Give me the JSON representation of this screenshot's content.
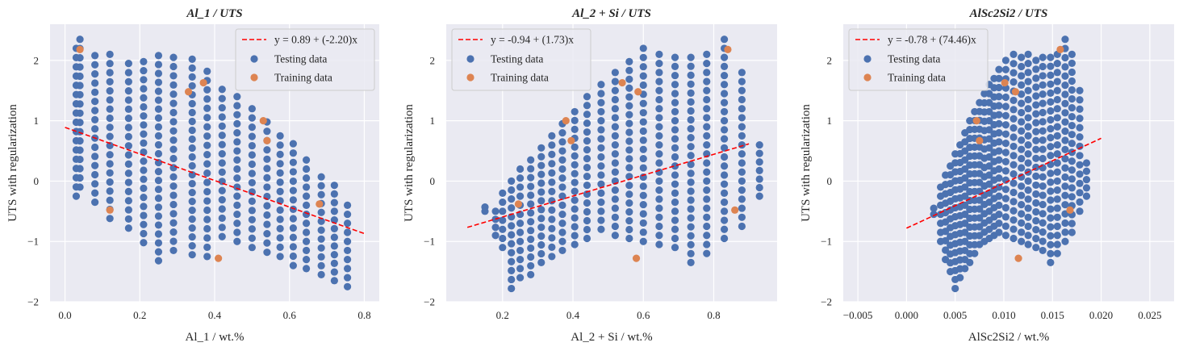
{
  "colors": {
    "background": "#eaeaf2",
    "grid": "#ffffff",
    "testing": "#4c72b0",
    "training": "#dd8452",
    "fit": "#ff0000"
  },
  "chart_data": [
    {
      "type": "scatter",
      "title": "Al_1 / UTS",
      "xlabel": "Al_1 / wt.%",
      "ylabel": "UTS with regularization",
      "xlim": [
        -0.04,
        0.84
      ],
      "ylim": [
        -2.0,
        2.6
      ],
      "xticks": [
        0.0,
        0.2,
        0.4,
        0.6,
        0.8
      ],
      "xtick_labels": [
        "0.0",
        "0.2",
        "0.4",
        "0.6",
        "0.8"
      ],
      "yticks": [
        -2,
        -1,
        0,
        1,
        2
      ],
      "ytick_labels": [
        "−2",
        "−1",
        "0",
        "1",
        "2"
      ],
      "fit": {
        "label": "y = 0.89 + (-2.20)x",
        "intercept": 0.89,
        "slope": -2.2,
        "x_range": [
          0.0,
          0.8
        ]
      },
      "legend": {
        "position": "top-right",
        "entries": [
          "y = 0.89 + (-2.20)x",
          "Testing data",
          "Training data"
        ]
      },
      "training": {
        "name": "Training data",
        "x": [
          0.04,
          0.12,
          0.33,
          0.37,
          0.41,
          0.53,
          0.54,
          0.68
        ],
        "y": [
          2.18,
          -0.48,
          1.48,
          1.63,
          -1.28,
          1.0,
          0.67,
          -0.38
        ]
      },
      "testing": {
        "name": "Testing data",
        "columns": [
          {
            "x": 0.03,
            "y": [
              2.2,
              -0.25
            ]
          },
          {
            "x": 0.04,
            "y": [
              2.35,
              -0.1
            ]
          },
          {
            "x": 0.08,
            "y": [
              2.08,
              -0.35
            ]
          },
          {
            "x": 0.12,
            "y": [
              2.1,
              -0.62
            ]
          },
          {
            "x": 0.17,
            "y": [
              1.95,
              -0.78
            ]
          },
          {
            "x": 0.21,
            "y": [
              1.98,
              -1.02
            ]
          },
          {
            "x": 0.25,
            "y": [
              2.08,
              -1.32
            ]
          },
          {
            "x": 0.29,
            "y": [
              2.05,
              -1.15
            ]
          },
          {
            "x": 0.34,
            "y": [
              2.02,
              -1.22
            ]
          },
          {
            "x": 0.38,
            "y": [
              1.82,
              -1.25
            ]
          },
          {
            "x": 0.42,
            "y": [
              1.52,
              -0.92
            ]
          },
          {
            "x": 0.46,
            "y": [
              1.4,
              -1.0
            ]
          },
          {
            "x": 0.5,
            "y": [
              1.2,
              -1.1
            ]
          },
          {
            "x": 0.54,
            "y": [
              0.98,
              -1.18
            ]
          },
          {
            "x": 0.575,
            "y": [
              0.75,
              -1.25
            ]
          },
          {
            "x": 0.61,
            "y": [
              0.62,
              -1.4
            ]
          },
          {
            "x": 0.645,
            "y": [
              0.35,
              -1.45
            ]
          },
          {
            "x": 0.685,
            "y": [
              0.07,
              -1.55
            ]
          },
          {
            "x": 0.72,
            "y": [
              -0.07,
              -1.65
            ]
          },
          {
            "x": 0.755,
            "y": [
              -0.4,
              -1.75
            ]
          }
        ]
      }
    },
    {
      "type": "scatter",
      "title": "Al_2 + Si / UTS",
      "xlabel": "Al_2 + Si / wt.%",
      "ylabel": "UTS with regularization",
      "xlim": [
        0.04,
        0.98
      ],
      "ylim": [
        -2.0,
        2.6
      ],
      "xticks": [
        0.2,
        0.4,
        0.6,
        0.8
      ],
      "xtick_labels": [
        "0.2",
        "0.4",
        "0.6",
        "0.8"
      ],
      "yticks": [
        -2,
        -1,
        0,
        1,
        2
      ],
      "ytick_labels": [
        "−2",
        "−1",
        "0",
        "1",
        "2"
      ],
      "fit": {
        "label": "y = -0.94 + (1.73)x",
        "intercept": -0.94,
        "slope": 1.73,
        "x_range": [
          0.1,
          0.9
        ]
      },
      "legend": {
        "position": "top-left",
        "entries": [
          "y = -0.94 + (1.73)x",
          "Testing data",
          "Training data"
        ]
      },
      "training": {
        "name": "Training data",
        "x": [
          0.245,
          0.38,
          0.395,
          0.54,
          0.585,
          0.58,
          0.84,
          0.86
        ],
        "y": [
          -0.38,
          1.0,
          0.67,
          1.63,
          1.48,
          -1.28,
          2.18,
          -0.48
        ]
      },
      "testing": {
        "name": "Testing data",
        "columns": [
          {
            "x": 0.15,
            "y": [
              -0.43,
              -0.5
            ]
          },
          {
            "x": 0.18,
            "y": [
              -0.5,
              -0.9
            ]
          },
          {
            "x": 0.2,
            "y": [
              -0.2,
              -1.1
            ]
          },
          {
            "x": 0.225,
            "y": [
              0.0,
              -1.78
            ]
          },
          {
            "x": 0.25,
            "y": [
              0.2,
              -1.6
            ]
          },
          {
            "x": 0.28,
            "y": [
              0.35,
              -1.55
            ]
          },
          {
            "x": 0.31,
            "y": [
              0.55,
              -1.35
            ]
          },
          {
            "x": 0.34,
            "y": [
              0.75,
              -1.25
            ]
          },
          {
            "x": 0.37,
            "y": [
              0.95,
              -1.15
            ]
          },
          {
            "x": 0.405,
            "y": [
              1.15,
              -1.05
            ]
          },
          {
            "x": 0.44,
            "y": [
              1.4,
              -0.95
            ]
          },
          {
            "x": 0.48,
            "y": [
              1.6,
              -0.8
            ]
          },
          {
            "x": 0.52,
            "y": [
              1.8,
              -0.9
            ]
          },
          {
            "x": 0.56,
            "y": [
              1.98,
              -0.95
            ]
          },
          {
            "x": 0.6,
            "y": [
              2.2,
              -1.0
            ]
          },
          {
            "x": 0.645,
            "y": [
              2.1,
              -1.05
            ]
          },
          {
            "x": 0.69,
            "y": [
              2.05,
              -1.1
            ]
          },
          {
            "x": 0.735,
            "y": [
              2.05,
              -1.35
            ]
          },
          {
            "x": 0.78,
            "y": [
              2.1,
              -1.2
            ]
          },
          {
            "x": 0.83,
            "y": [
              2.35,
              -0.95
            ]
          },
          {
            "x": 0.88,
            "y": [
              1.8,
              -0.75
            ]
          },
          {
            "x": 0.93,
            "y": [
              0.6,
              -0.25
            ]
          }
        ]
      }
    },
    {
      "type": "scatter",
      "title": "AlSc2Si2 / UTS",
      "xlabel": "AlSc2Si2 / wt.%",
      "ylabel": "UTS with regularization",
      "xlim": [
        -0.0065,
        0.0275
      ],
      "ylim": [
        -2.0,
        2.6
      ],
      "xticks": [
        -0.005,
        0.0,
        0.005,
        0.01,
        0.015,
        0.02,
        0.025
      ],
      "xtick_labels": [
        "−0.005",
        "0.000",
        "0.005",
        "0.010",
        "0.015",
        "0.020",
        "0.025"
      ],
      "yticks": [
        -2,
        -1,
        0,
        1,
        2
      ],
      "ytick_labels": [
        "−2",
        "−1",
        "0",
        "1",
        "2"
      ],
      "fit": {
        "label": "y = -0.78 + (74.46)x",
        "intercept": -0.78,
        "slope": 74.46,
        "x_range": [
          0.0,
          0.02
        ]
      },
      "legend": {
        "position": "top-left",
        "entries": [
          "y = -0.78 + (74.46)x",
          "Testing data",
          "Training data"
        ]
      },
      "training": {
        "name": "Training data",
        "x": [
          0.0072,
          0.0075,
          0.0101,
          0.0112,
          0.0115,
          0.0158,
          0.0168
        ],
        "y": [
          1.0,
          0.67,
          1.63,
          1.48,
          -1.28,
          2.18,
          -0.48
        ]
      },
      "testing": {
        "name": "Testing data",
        "columns": [
          {
            "x": 0.0028,
            "y": [
              -0.45,
              -0.55
            ]
          },
          {
            "x": 0.0035,
            "y": [
              -0.1,
              -1.0
            ]
          },
          {
            "x": 0.004,
            "y": [
              0.1,
              -1.3
            ]
          },
          {
            "x": 0.0045,
            "y": [
              0.25,
              -1.5
            ]
          },
          {
            "x": 0.005,
            "y": [
              0.45,
              -1.78
            ]
          },
          {
            "x": 0.0055,
            "y": [
              0.6,
              -1.6
            ]
          },
          {
            "x": 0.006,
            "y": [
              0.8,
              -1.45
            ]
          },
          {
            "x": 0.0065,
            "y": [
              1.0,
              -1.35
            ]
          },
          {
            "x": 0.007,
            "y": [
              1.15,
              -1.2
            ]
          },
          {
            "x": 0.0075,
            "y": [
              1.3,
              -1.05
            ]
          },
          {
            "x": 0.008,
            "y": [
              1.45,
              -1.0
            ]
          },
          {
            "x": 0.0085,
            "y": [
              1.6,
              -0.95
            ]
          },
          {
            "x": 0.009,
            "y": [
              1.7,
              -0.9
            ]
          },
          {
            "x": 0.0095,
            "y": [
              1.85,
              -0.85
            ]
          },
          {
            "x": 0.0102,
            "y": [
              2.0,
              -0.9
            ]
          },
          {
            "x": 0.011,
            "y": [
              2.1,
              -0.95
            ]
          },
          {
            "x": 0.0118,
            "y": [
              2.05,
              -1.0
            ]
          },
          {
            "x": 0.0125,
            "y": [
              2.1,
              -1.05
            ]
          },
          {
            "x": 0.0133,
            "y": [
              2.0,
              -1.1
            ]
          },
          {
            "x": 0.014,
            "y": [
              2.05,
              -1.15
            ]
          },
          {
            "x": 0.0148,
            "y": [
              2.05,
              -1.35
            ]
          },
          {
            "x": 0.0155,
            "y": [
              2.1,
              -1.2
            ]
          },
          {
            "x": 0.0163,
            "y": [
              2.35,
              -1.0
            ]
          },
          {
            "x": 0.017,
            "y": [
              2.1,
              -0.85
            ]
          },
          {
            "x": 0.0178,
            "y": [
              1.5,
              -0.5
            ]
          },
          {
            "x": 0.0185,
            "y": [
              0.3,
              -0.25
            ]
          }
        ]
      }
    }
  ]
}
